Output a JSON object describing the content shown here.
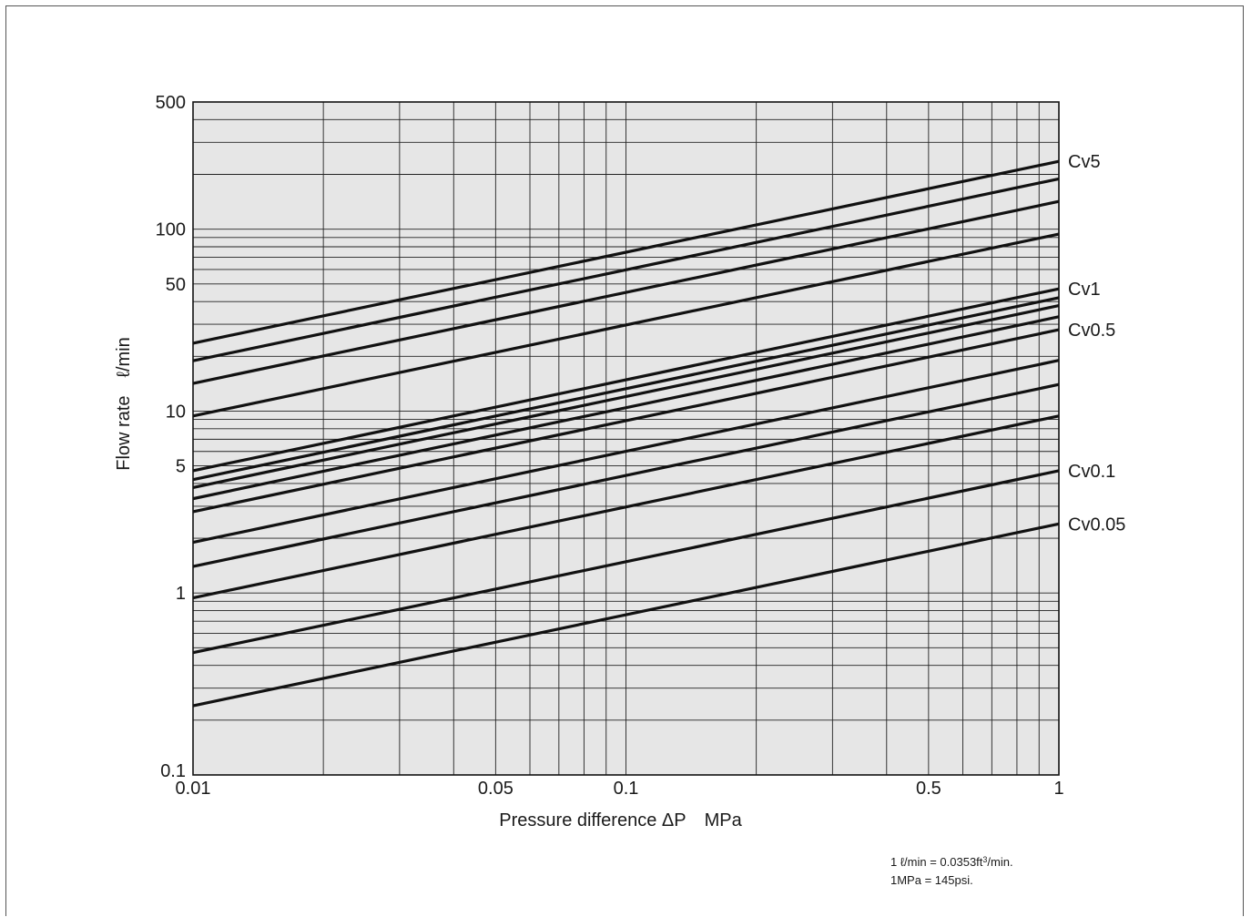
{
  "chart_data": {
    "type": "line",
    "xlabel": "Pressure difference ΔP MPa",
    "ylabel": "Flow rate ℓ/min",
    "xscale": "log",
    "yscale": "log",
    "xlim": [
      0.01,
      1
    ],
    "ylim": [
      0.1,
      500
    ],
    "x_ticks": [
      "0.01",
      "0.05",
      "0.1",
      "0.5",
      "1"
    ],
    "x_tick_values": [
      0.01,
      0.05,
      0.1,
      0.5,
      1
    ],
    "y_ticks": [
      "0.1",
      "1",
      "5",
      "10",
      "50",
      "100",
      "500"
    ],
    "y_tick_values": [
      0.1,
      1,
      5,
      10,
      50,
      100,
      500
    ],
    "grid": true,
    "background": "#e6e6e6",
    "line_color": "#111111",
    "x": [
      0.01,
      1
    ],
    "series": [
      {
        "name": "Cv5",
        "values": [
          23.6,
          236
        ]
      },
      {
        "values": [
          18.9,
          189
        ]
      },
      {
        "values": [
          14.2,
          142
        ]
      },
      {
        "values": [
          9.4,
          94
        ]
      },
      {
        "name": "Cv1",
        "values": [
          4.7,
          47
        ]
      },
      {
        "values": [
          4.2,
          42
        ]
      },
      {
        "values": [
          3.8,
          38
        ]
      },
      {
        "values": [
          3.3,
          33
        ]
      },
      {
        "name": "Cv0.5",
        "values": [
          2.8,
          28
        ]
      },
      {
        "values": [
          1.9,
          19
        ]
      },
      {
        "values": [
          1.4,
          14
        ]
      },
      {
        "values": [
          0.94,
          9.4
        ]
      },
      {
        "name": "Cv0.1",
        "values": [
          0.47,
          4.7
        ]
      },
      {
        "name": "Cv0.05",
        "values": [
          0.24,
          2.4
        ]
      }
    ]
  },
  "notes": {
    "unit_flow_prefix": "1 ℓ/min = 0.0353ft",
    "unit_flow_sup": "3",
    "unit_flow_suffix": "/min.",
    "unit_pressure": "1MPa = 145psi."
  }
}
